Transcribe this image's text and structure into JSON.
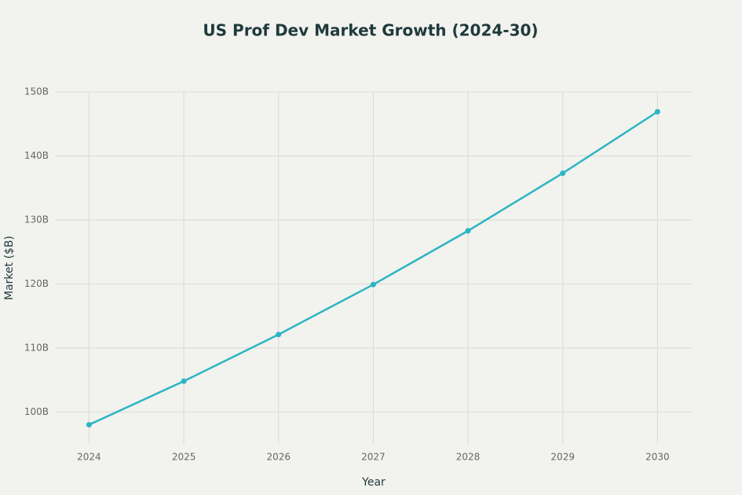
{
  "chart_data": {
    "type": "line",
    "title": "US Prof Dev Market Growth (2024-30)",
    "x_label": "Year",
    "y_label": "Market ($B)",
    "x": [
      2024,
      2025,
      2026,
      2027,
      2028,
      2029,
      2030
    ],
    "series": [
      {
        "name": "Market",
        "color": "#2bb5c3",
        "values": [
          98,
          104.8,
          112.1,
          119.9,
          128.3,
          137.3,
          146.9
        ]
      }
    ],
    "xlim": [
      2023.64,
      2030.37
    ],
    "xticks": [
      2024,
      2025,
      2026,
      2027,
      2028,
      2029,
      2030
    ],
    "ylim": [
      95,
      150
    ],
    "yticks": [
      {
        "value": 100,
        "label": "100B"
      },
      {
        "value": 110,
        "label": "110B"
      },
      {
        "value": 120,
        "label": "120B"
      },
      {
        "value": 130,
        "label": "130B"
      },
      {
        "value": 140,
        "label": "140B"
      },
      {
        "value": 150,
        "label": "150B"
      }
    ],
    "grid": true
  }
}
